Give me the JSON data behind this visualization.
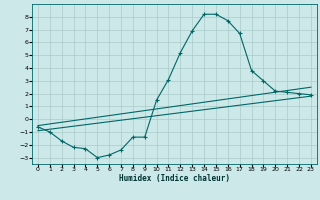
{
  "xlabel": "Humidex (Indice chaleur)",
  "background_color": "#cce8e8",
  "grid_color": "#aacccc",
  "line_color": "#006666",
  "xlim": [
    -0.5,
    23.5
  ],
  "ylim": [
    -3.5,
    9.0
  ],
  "xticks": [
    0,
    1,
    2,
    3,
    4,
    5,
    6,
    7,
    8,
    9,
    10,
    11,
    12,
    13,
    14,
    15,
    16,
    17,
    18,
    19,
    20,
    21,
    22,
    23
  ],
  "yticks": [
    -3,
    -2,
    -1,
    0,
    1,
    2,
    3,
    4,
    5,
    6,
    7,
    8
  ],
  "line1_x": [
    0,
    1,
    2,
    3,
    4,
    5,
    6,
    7,
    8,
    9,
    10,
    11,
    12,
    13,
    14,
    15,
    16,
    17,
    18,
    19,
    20,
    21,
    22,
    23
  ],
  "line1_y": [
    -0.6,
    -1.0,
    -1.7,
    -2.2,
    -2.3,
    -3.0,
    -2.8,
    -2.4,
    -1.4,
    -1.4,
    1.5,
    3.1,
    5.2,
    6.9,
    8.2,
    8.2,
    7.7,
    6.7,
    3.8,
    3.0,
    2.2,
    2.1,
    2.0,
    1.9
  ],
  "line2_x": [
    0,
    23
  ],
  "line2_y": [
    -0.9,
    1.8
  ],
  "line3_x": [
    0,
    23
  ],
  "line3_y": [
    -0.5,
    2.5
  ]
}
